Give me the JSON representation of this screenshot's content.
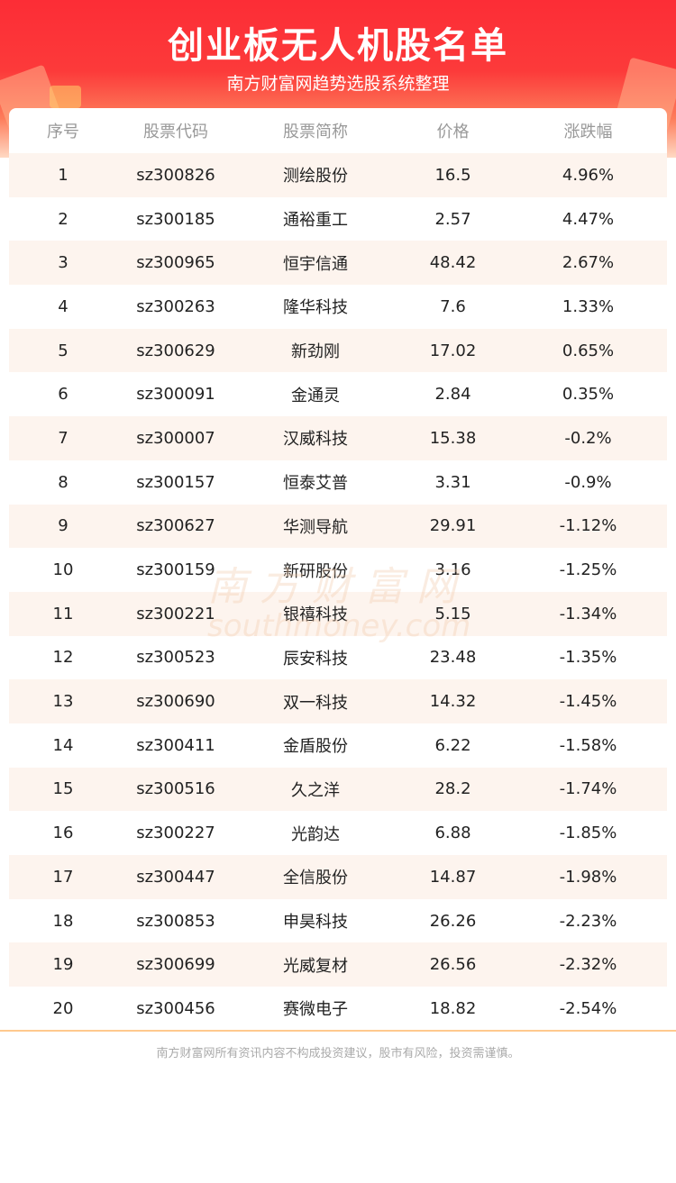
{
  "header": {
    "title": "创业板无人机股名单",
    "subtitle": "南方财富网趋势选股系统整理"
  },
  "table": {
    "columns": [
      "序号",
      "股票代码",
      "股票简称",
      "价格",
      "涨跌幅"
    ],
    "rows": [
      [
        "1",
        "sz300826",
        "测绘股份",
        "16.5",
        "4.96%"
      ],
      [
        "2",
        "sz300185",
        "通裕重工",
        "2.57",
        "4.47%"
      ],
      [
        "3",
        "sz300965",
        "恒宇信通",
        "48.42",
        "2.67%"
      ],
      [
        "4",
        "sz300263",
        "隆华科技",
        "7.6",
        "1.33%"
      ],
      [
        "5",
        "sz300629",
        "新劲刚",
        "17.02",
        "0.65%"
      ],
      [
        "6",
        "sz300091",
        "金通灵",
        "2.84",
        "0.35%"
      ],
      [
        "7",
        "sz300007",
        "汉威科技",
        "15.38",
        "-0.2%"
      ],
      [
        "8",
        "sz300157",
        "恒泰艾普",
        "3.31",
        "-0.9%"
      ],
      [
        "9",
        "sz300627",
        "华测导航",
        "29.91",
        "-1.12%"
      ],
      [
        "10",
        "sz300159",
        "新研股份",
        "3.16",
        "-1.25%"
      ],
      [
        "11",
        "sz300221",
        "银禧科技",
        "5.15",
        "-1.34%"
      ],
      [
        "12",
        "sz300523",
        "辰安科技",
        "23.48",
        "-1.35%"
      ],
      [
        "13",
        "sz300690",
        "双一科技",
        "14.32",
        "-1.45%"
      ],
      [
        "14",
        "sz300411",
        "金盾股份",
        "6.22",
        "-1.58%"
      ],
      [
        "15",
        "sz300516",
        "久之洋",
        "28.2",
        "-1.74%"
      ],
      [
        "16",
        "sz300227",
        "光韵达",
        "6.88",
        "-1.85%"
      ],
      [
        "17",
        "sz300447",
        "全信股份",
        "14.87",
        "-1.98%"
      ],
      [
        "18",
        "sz300853",
        "申昊科技",
        "26.26",
        "-2.23%"
      ],
      [
        "19",
        "sz300699",
        "光威复材",
        "26.56",
        "-2.32%"
      ],
      [
        "20",
        "sz300456",
        "赛微电子",
        "18.82",
        "-2.54%"
      ]
    ]
  },
  "watermark": {
    "cn": "南方财富网",
    "en": "southmoney.com"
  },
  "footer": {
    "disclaimer": "南方财富网所有资讯内容不构成投资建议，股市有风险，投资需谨慎。"
  },
  "colors": {
    "banner": "#fc2d36",
    "row_alt": "#fdf4ee",
    "divider": "#ffc98e"
  }
}
